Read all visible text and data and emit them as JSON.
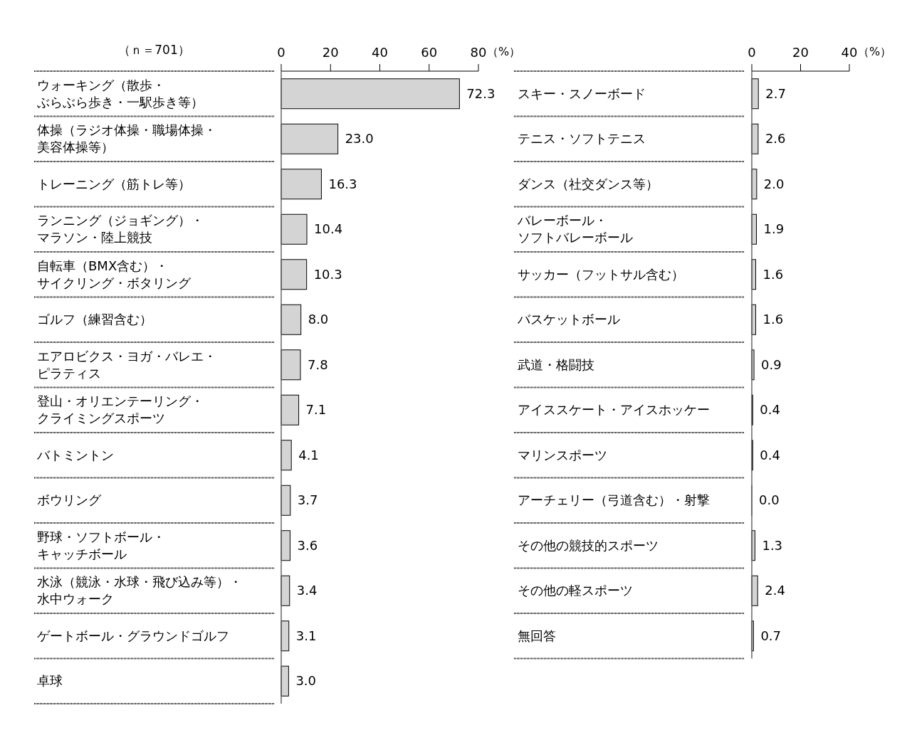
{
  "chart_data": [
    {
      "type": "bar",
      "orientation": "horizontal",
      "xlim": [
        0,
        80
      ],
      "xticks": [
        0,
        20,
        40,
        60,
        80
      ],
      "xlabel": "（%）",
      "color": "#d4d4d4",
      "grid": false,
      "annotations": [
        "（ｎ＝701）"
      ],
      "categories": [
        "ウォーキング（散歩・ぶらぶら歩き・一駅歩き等）",
        "体操（ラジオ体操・職場体操・美容体操等）",
        "トレーニング（筋トレ等）",
        "ランニング（ジョギング）・マラソン・陸上競技",
        "自転車（BMX含む）・サイクリング・ボタリング",
        "ゴルフ（練習含む）",
        "エアロビクス・ヨガ・バレエ・ピラティス",
        "登山・オリエンテーリング・クライミングスポーツ",
        "バトミントン",
        "ボウリング",
        "野球・ソフトボール・キャッチボール",
        "水泳（競泳・水球・飛び込み等）・水中ウォーク",
        "ゲートボール・グラウンドゴルフ",
        "卓球"
      ],
      "values": [
        72.3,
        23.0,
        16.3,
        10.4,
        10.3,
        8.0,
        7.8,
        7.1,
        4.1,
        3.7,
        3.6,
        3.4,
        3.1,
        3.0
      ],
      "value_labels": [
        "72.3",
        "23.0",
        "16.3",
        "10.4",
        "10.3",
        "8.0",
        "7.8",
        "7.1",
        "4.1",
        "3.7",
        "3.6",
        "3.4",
        "3.1",
        "3.0"
      ]
    },
    {
      "type": "bar",
      "orientation": "horizontal",
      "xlim": [
        0,
        40
      ],
      "xticks": [
        0,
        20,
        40
      ],
      "xlabel": "（%）",
      "color": "#d4d4d4",
      "grid": false,
      "categories": [
        "スキー・スノーボード",
        "テニス・ソフトテニス",
        "ダンス（社交ダンス等）",
        "バレーボール・ソフトバレーボール",
        "サッカー（フットサル含む）",
        "バスケットボール",
        "武道・格闘技",
        "アイススケート・アイスホッケー",
        "マリンスポーツ",
        "アーチェリー（弓道含む）・射撃",
        "その他の競技的スポーツ",
        "その他の軽スポーツ",
        "無回答"
      ],
      "values": [
        2.7,
        2.6,
        2.0,
        1.9,
        1.6,
        1.6,
        0.9,
        0.4,
        0.4,
        0.0,
        1.3,
        2.4,
        0.7
      ],
      "value_labels": [
        "2.7",
        "2.6",
        "2.0",
        "1.9",
        "1.6",
        "1.6",
        "0.9",
        "0.4",
        "0.4",
        "0.0",
        "1.3",
        "2.4",
        "0.7"
      ]
    }
  ]
}
